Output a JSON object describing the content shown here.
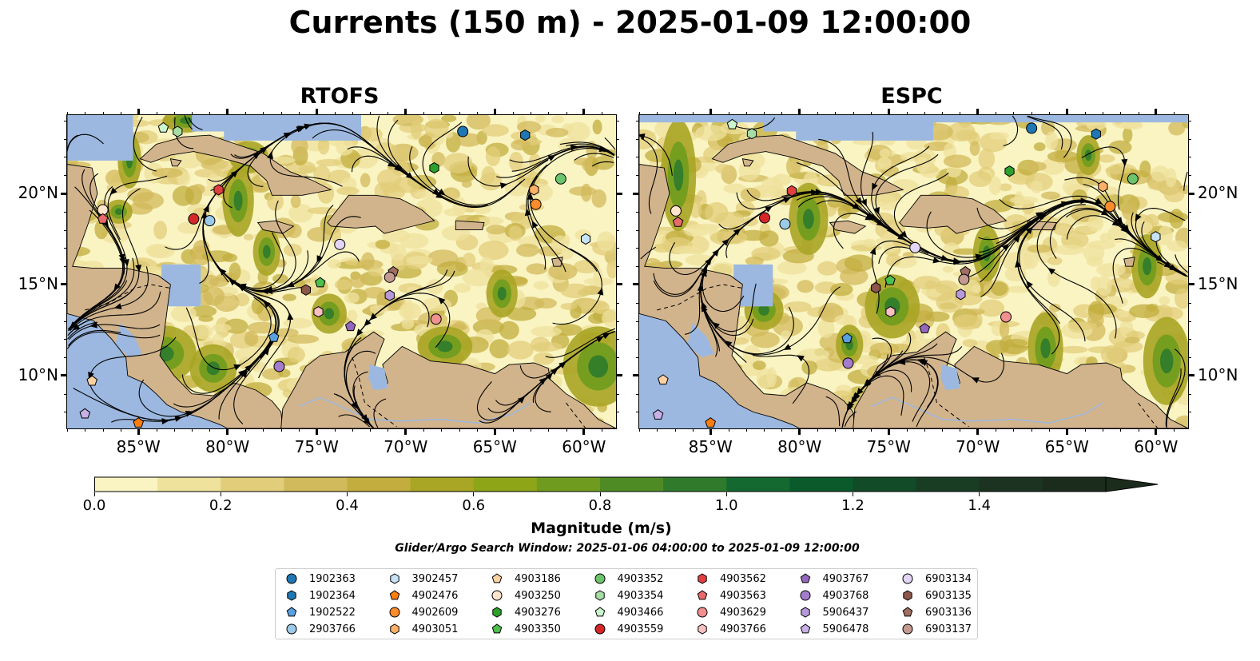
{
  "title": "Currents (150 m) - 2025-01-09 12:00:00",
  "panels": [
    {
      "title": "RTOFS",
      "variant": 0
    },
    {
      "title": "ESPC",
      "variant": 1
    }
  ],
  "axes": {
    "lon_range": [
      -89,
      -58.2
    ],
    "lat_range": [
      7.1,
      24.3
    ],
    "lon_ticks": [
      -85,
      -80,
      -75,
      -70,
      -65,
      -60
    ],
    "lon_labels": [
      "85°W",
      "80°W",
      "75°W",
      "70°W",
      "65°W",
      "60°W"
    ],
    "lat_ticks": [
      10,
      15,
      20
    ],
    "lat_labels": [
      "10°N",
      "15°N",
      "20°N"
    ]
  },
  "colors": {
    "land": "#d2b48c",
    "water": "#9cb8e0",
    "colormap": [
      "#f9f4c2",
      "#efe29d",
      "#e1cd7a",
      "#d1ba5b",
      "#c2ad3e",
      "#a9a525",
      "#8ea518",
      "#6f9c1e",
      "#4e8b25",
      "#2f7a2b",
      "#13692f",
      "#0b5a2c",
      "#124b27",
      "#183d23",
      "#1b3320",
      "#1c2c1c"
    ]
  },
  "colorbar": {
    "label": "Magnitude (m/s)",
    "min": 0,
    "max": 1.6,
    "extend": "max",
    "ticks": [
      "0.0",
      "0.2",
      "0.4",
      "0.6",
      "0.8",
      "1.0",
      "1.2",
      "1.4"
    ]
  },
  "search_window": "Glider/Argo Search Window: 2025-01-06 04:00:00 to 2025-01-09 12:00:00",
  "chart_data": {
    "type": "map-streamplot",
    "variable": "current magnitude at 150 m",
    "units": "m/s",
    "panels": [
      "RTOFS",
      "ESPC"
    ],
    "floats": [
      {
        "id": "1902363",
        "marker": "circle",
        "color": "#1f77b4",
        "lon": -66.8,
        "lat": 23.4
      },
      {
        "id": "1902364",
        "marker": "hexagon",
        "color": "#1f77b4",
        "lon": -63.3,
        "lat": 23.2
      },
      {
        "id": "1902522",
        "marker": "pentagon",
        "color": "#5aa0e0",
        "lon": -77.4,
        "lat": 12.1
      },
      {
        "id": "2903766",
        "marker": "circle",
        "color": "#9ecae9",
        "lon": -81.0,
        "lat": 18.5
      },
      {
        "id": "3902457",
        "marker": "hexagon",
        "color": "#c6e2f5",
        "lon": -59.9,
        "lat": 17.5
      },
      {
        "id": "4902476",
        "marker": "pentagon",
        "color": "#ff7f0e",
        "lon": -85.0,
        "lat": 7.4
      },
      {
        "id": "4902609",
        "marker": "circle",
        "color": "#ff8c2a",
        "lon": -62.7,
        "lat": 19.4
      },
      {
        "id": "4903051",
        "marker": "hexagon",
        "color": "#ffb066",
        "lon": -62.8,
        "lat": 20.2
      },
      {
        "id": "4903186",
        "marker": "pentagon",
        "color": "#ffd1a3",
        "lon": -87.6,
        "lat": 9.7
      },
      {
        "id": "4903250",
        "marker": "circle",
        "color": "#ffe5cc",
        "lon": -87.0,
        "lat": 19.1
      },
      {
        "id": "4903276",
        "marker": "hexagon",
        "color": "#2ca02c",
        "lon": -68.4,
        "lat": 21.4
      },
      {
        "id": "4903350",
        "marker": "pentagon",
        "color": "#4cbf4c",
        "lon": -74.8,
        "lat": 15.1
      },
      {
        "id": "4903352",
        "marker": "circle",
        "color": "#6cc46c",
        "lon": -61.3,
        "lat": 20.8
      },
      {
        "id": "4903354",
        "marker": "hexagon",
        "color": "#a5dea5",
        "lon": -82.8,
        "lat": 23.4
      },
      {
        "id": "4903466",
        "marker": "pentagon",
        "color": "#cdf5cd",
        "lon": -83.6,
        "lat": 23.6
      },
      {
        "id": "4903559",
        "marker": "circle",
        "color": "#d62728",
        "lon": -81.9,
        "lat": 18.6
      },
      {
        "id": "4903562",
        "marker": "hexagon",
        "color": "#e04040",
        "lon": -80.5,
        "lat": 20.2
      },
      {
        "id": "4903563",
        "marker": "pentagon",
        "color": "#e86a6a",
        "lon": -87.0,
        "lat": 18.6
      },
      {
        "id": "4903629",
        "marker": "circle",
        "color": "#f09090",
        "lon": -68.3,
        "lat": 13.1
      },
      {
        "id": "4903766",
        "marker": "hexagon",
        "color": "#f8c0c0",
        "lon": -74.9,
        "lat": 13.5
      },
      {
        "id": "4903767",
        "marker": "pentagon",
        "color": "#9467bd",
        "lon": -73.1,
        "lat": 12.7
      },
      {
        "id": "4903768",
        "marker": "circle",
        "color": "#a47ccc",
        "lon": -77.1,
        "lat": 10.5
      },
      {
        "id": "5906437",
        "marker": "hexagon",
        "color": "#b699d9",
        "lon": -70.9,
        "lat": 14.4
      },
      {
        "id": "5906478",
        "marker": "pentagon",
        "color": "#c9b0e6",
        "lon": -88.0,
        "lat": 7.9
      },
      {
        "id": "6903134",
        "marker": "circle",
        "color": "#e4d4f5",
        "lon": -73.7,
        "lat": 17.2
      },
      {
        "id": "6903135",
        "marker": "hexagon",
        "color": "#8c564b",
        "lon": -75.6,
        "lat": 14.7
      },
      {
        "id": "6903136",
        "marker": "pentagon",
        "color": "#a06e62",
        "lon": -70.7,
        "lat": 15.7
      },
      {
        "id": "6903137",
        "marker": "circle",
        "color": "#c49a90",
        "lon": -70.9,
        "lat": 15.4
      }
    ]
  }
}
